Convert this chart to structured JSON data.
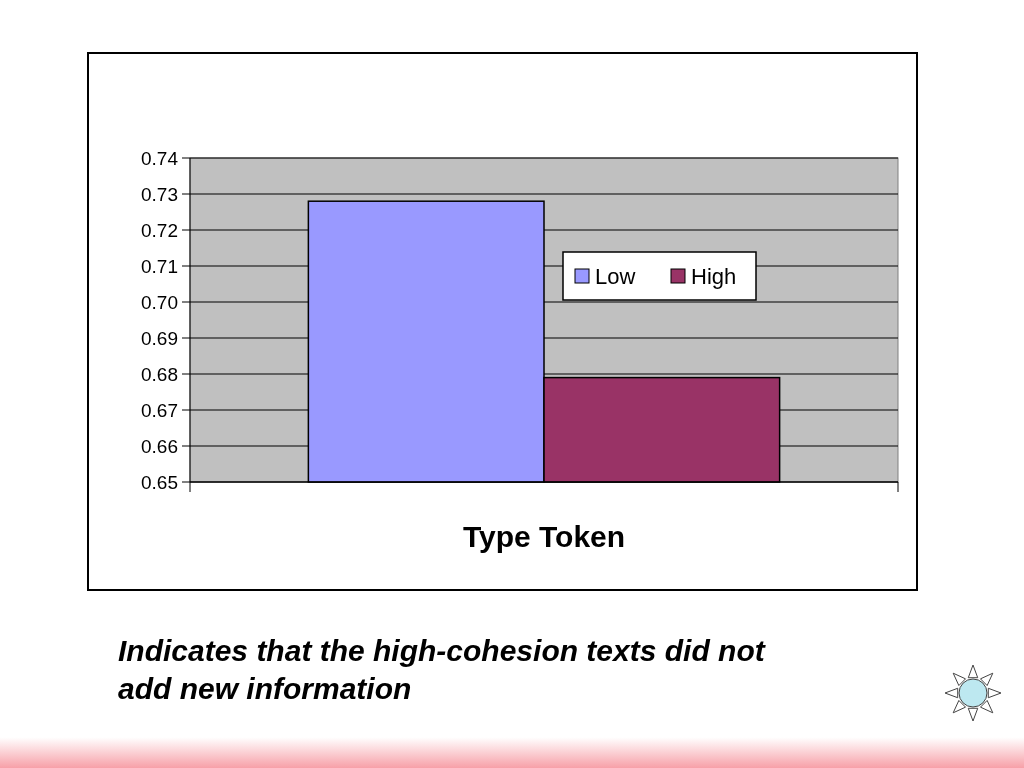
{
  "chart_data": {
    "type": "bar",
    "categories": [
      "Type Token"
    ],
    "series": [
      {
        "name": "Low",
        "color": "#9999ff",
        "values": [
          0.728
        ]
      },
      {
        "name": "High",
        "color": "#993366",
        "values": [
          0.679
        ]
      }
    ],
    "ylim": [
      0.65,
      0.74
    ],
    "yticks": [
      0.65,
      0.66,
      0.67,
      0.68,
      0.69,
      {
        "value": 0.7,
        "label": "0.70"
      },
      0.71,
      0.72,
      0.73,
      0.74
    ],
    "grid": "y",
    "legend": "right",
    "annotations": [
      "Indicates that the high-cohesion texts did not add new information"
    ]
  }
}
